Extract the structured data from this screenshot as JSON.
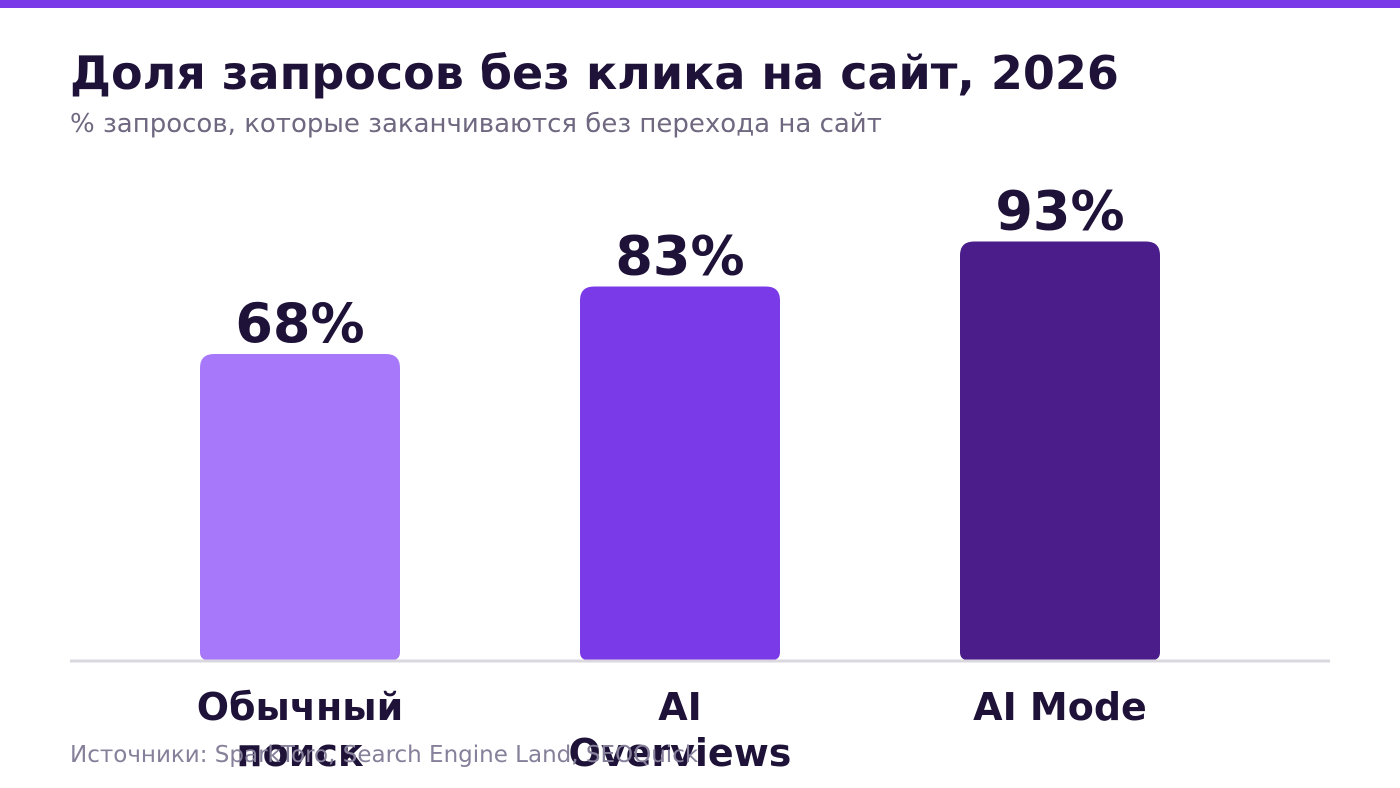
{
  "colors": {
    "accent": "#7b3ae8",
    "title": "#1e1238",
    "subtitle": "#6f6880",
    "source": "#86809a",
    "baseline": "#dad8de"
  },
  "chart_data": {
    "type": "bar",
    "title": "Доля запросов без клика на сайт, 2026",
    "subtitle": "% запросов, которые заканчиваются без перехода на сайт",
    "categories": [
      "Обычный поиск",
      "AI Overviews",
      "AI Mode"
    ],
    "category_lines": [
      [
        "Обычный",
        "поиск"
      ],
      [
        "AI",
        "Overviews"
      ],
      [
        "AI Mode"
      ]
    ],
    "values": [
      68,
      83,
      93
    ],
    "value_labels": [
      "68%",
      "83%",
      "93%"
    ],
    "bar_colors": [
      "#a778f9",
      "#7b3ae8",
      "#4a1d8a"
    ],
    "ylim": [
      0,
      100
    ],
    "grid": false,
    "legend": "none"
  },
  "source": "Источники: SparkToro, Search Engine Land, SEOQuick"
}
